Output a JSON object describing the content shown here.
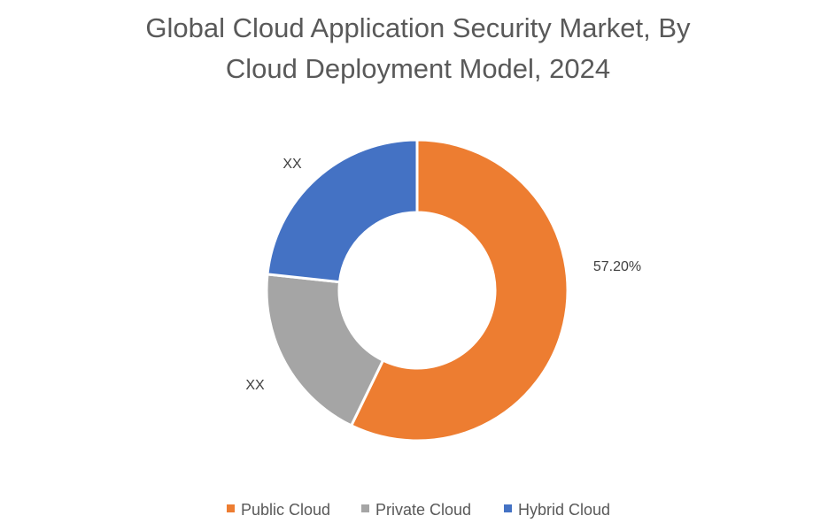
{
  "chart_data": {
    "type": "pie",
    "subtype": "donut",
    "title": "Global Cloud Application Security Market, By Cloud Deployment Model, 2024",
    "title_lines": [
      "Global Cloud Application Security Market, By",
      "Cloud Deployment Model, 2024"
    ],
    "categories": [
      "Public Cloud",
      "Private Cloud",
      "Hybrid Cloud"
    ],
    "values": [
      57.2,
      19.5,
      23.3
    ],
    "data_labels": [
      "57.20%",
      "XX",
      "XX"
    ],
    "colors": [
      "#ED7D31",
      "#A5A5A5",
      "#4472C4"
    ],
    "legend_position": "bottom"
  }
}
